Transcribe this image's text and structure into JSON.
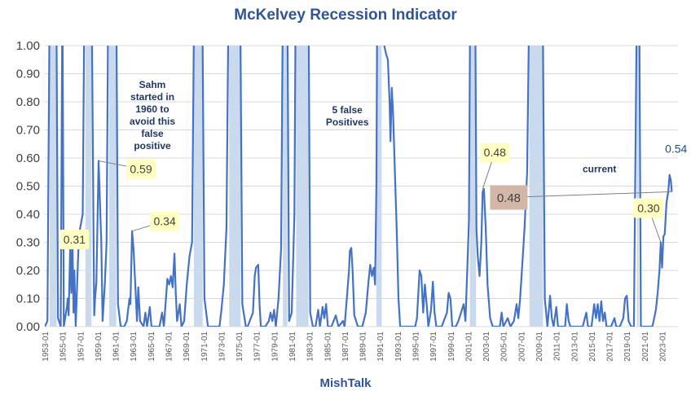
{
  "chart_data": {
    "type": "line",
    "title": "McKelvey Recession Indicator",
    "xlabel": "MishTalk",
    "ylabel": "",
    "ylim": [
      0,
      1
    ],
    "xlim": [
      1953.0,
      2024.8
    ],
    "grid": true,
    "legend": "none",
    "y_ticks": [
      "0.00",
      "0.10",
      "0.20",
      "0.30",
      "0.40",
      "0.50",
      "0.60",
      "0.70",
      "0.80",
      "0.90",
      "1.00"
    ],
    "x_ticks": [
      "1953-01",
      "1955-01",
      "1957-01",
      "1959-01",
      "1961-01",
      "1963-01",
      "1965-01",
      "1967-01",
      "1969-01",
      "1971-01",
      "1973-01",
      "1975-01",
      "1977-01",
      "1979-01",
      "1981-01",
      "1983-01",
      "1985-01",
      "1987-01",
      "1989-01",
      "1991-01",
      "1993-01",
      "1995-01",
      "1997-01",
      "1999-01",
      "2001-01",
      "2003-01",
      "2005-01",
      "2007-01",
      "2009-01",
      "2011-01",
      "2013-01",
      "2015-01",
      "2017-01",
      "2019-01",
      "2021-01",
      "2023-01"
    ],
    "recessions": [
      [
        1953.55,
        1954.35
      ],
      [
        1957.6,
        1958.3
      ],
      [
        1960.3,
        1961.1
      ],
      [
        1969.9,
        1970.9
      ],
      [
        1973.9,
        1975.2
      ],
      [
        1980.0,
        1980.5
      ],
      [
        1981.5,
        1982.9
      ],
      [
        1990.6,
        1991.2
      ],
      [
        2001.2,
        2001.9
      ],
      [
        2007.95,
        2009.5
      ],
      [
        2020.15,
        2020.35
      ]
    ],
    "series": [
      {
        "color": "#4472c4",
        "points": [
          [
            1953.0,
            0.0
          ],
          [
            1953.3,
            0.02
          ],
          [
            1953.55,
            1.2
          ],
          [
            1954.3,
            1.2
          ],
          [
            1954.5,
            0.03
          ],
          [
            1954.8,
            0.0
          ],
          [
            1955.0,
            1.2
          ],
          [
            1955.15,
            0.0
          ],
          [
            1955.5,
            0.07
          ],
          [
            1955.6,
            0.1
          ],
          [
            1955.7,
            0.04
          ],
          [
            1955.9,
            0.31
          ],
          [
            1956.0,
            0.12
          ],
          [
            1956.15,
            0.28
          ],
          [
            1956.25,
            0.05
          ],
          [
            1956.35,
            0.2
          ],
          [
            1956.5,
            0.0
          ],
          [
            1956.8,
            0.27
          ],
          [
            1957.0,
            0.35
          ],
          [
            1957.3,
            0.4
          ],
          [
            1957.5,
            1.2
          ],
          [
            1958.3,
            1.2
          ],
          [
            1958.6,
            0.04
          ],
          [
            1958.7,
            0.1
          ],
          [
            1958.85,
            0.16
          ],
          [
            1959.1,
            0.59
          ],
          [
            1959.4,
            0.3
          ],
          [
            1959.55,
            0.02
          ],
          [
            1959.8,
            0.15
          ],
          [
            1960.0,
            0.3
          ],
          [
            1960.2,
            1.2
          ],
          [
            1961.1,
            1.2
          ],
          [
            1961.3,
            0.08
          ],
          [
            1961.6,
            0.0
          ],
          [
            1962.0,
            0.0
          ],
          [
            1962.3,
            0.02
          ],
          [
            1962.6,
            0.1
          ],
          [
            1962.7,
            0.08
          ],
          [
            1962.9,
            0.34
          ],
          [
            1963.05,
            0.28
          ],
          [
            1963.3,
            0.12
          ],
          [
            1963.45,
            0.02
          ],
          [
            1963.6,
            0.14
          ],
          [
            1963.8,
            0.02
          ],
          [
            1964.2,
            0.0
          ],
          [
            1964.4,
            0.05
          ],
          [
            1964.6,
            0.0
          ],
          [
            1964.9,
            0.07
          ],
          [
            1965.1,
            0.0
          ],
          [
            1965.5,
            0.0
          ],
          [
            1966.0,
            0.0
          ],
          [
            1966.3,
            0.05
          ],
          [
            1966.5,
            0.0
          ],
          [
            1966.9,
            0.17
          ],
          [
            1967.1,
            0.15
          ],
          [
            1967.3,
            0.18
          ],
          [
            1967.5,
            0.14
          ],
          [
            1967.7,
            0.26
          ],
          [
            1967.85,
            0.12
          ],
          [
            1968.0,
            0.02
          ],
          [
            1968.3,
            0.08
          ],
          [
            1968.5,
            0.0
          ],
          [
            1968.8,
            0.02
          ],
          [
            1969.1,
            0.15
          ],
          [
            1969.4,
            0.25
          ],
          [
            1969.7,
            0.3
          ],
          [
            1969.95,
            1.2
          ],
          [
            1970.85,
            1.2
          ],
          [
            1971.1,
            0.1
          ],
          [
            1971.5,
            0.0
          ],
          [
            1972.0,
            0.0
          ],
          [
            1972.8,
            0.0
          ],
          [
            1973.0,
            0.05
          ],
          [
            1973.3,
            0.15
          ],
          [
            1973.6,
            0.35
          ],
          [
            1973.85,
            1.2
          ],
          [
            1975.15,
            1.2
          ],
          [
            1975.4,
            0.08
          ],
          [
            1975.8,
            0.0
          ],
          [
            1976.0,
            0.0
          ],
          [
            1976.6,
            0.05
          ],
          [
            1976.8,
            0.18
          ],
          [
            1976.95,
            0.21
          ],
          [
            1977.2,
            0.22
          ],
          [
            1977.35,
            0.08
          ],
          [
            1977.5,
            0.0
          ],
          [
            1978.0,
            0.0
          ],
          [
            1978.4,
            0.02
          ],
          [
            1978.6,
            0.05
          ],
          [
            1978.8,
            0.02
          ],
          [
            1979.0,
            0.06
          ],
          [
            1979.2,
            0.0
          ],
          [
            1979.5,
            0.1
          ],
          [
            1979.8,
            0.28
          ],
          [
            1980.0,
            1.2
          ],
          [
            1980.5,
            1.2
          ],
          [
            1980.7,
            0.02
          ],
          [
            1981.0,
            0.05
          ],
          [
            1981.3,
            0.4
          ],
          [
            1981.45,
            1.2
          ],
          [
            1982.9,
            1.2
          ],
          [
            1983.1,
            0.05
          ],
          [
            1983.4,
            0.0
          ],
          [
            1983.7,
            0.0
          ],
          [
            1984.0,
            0.06
          ],
          [
            1984.2,
            0.0
          ],
          [
            1984.5,
            0.07
          ],
          [
            1984.7,
            0.03
          ],
          [
            1984.9,
            0.08
          ],
          [
            1985.1,
            0.0
          ],
          [
            1985.5,
            0.0
          ],
          [
            1986.0,
            0.04
          ],
          [
            1986.3,
            0.0
          ],
          [
            1986.8,
            0.02
          ],
          [
            1987.0,
            0.0
          ],
          [
            1987.5,
            0.2
          ],
          [
            1987.6,
            0.27
          ],
          [
            1987.75,
            0.28
          ],
          [
            1987.9,
            0.2
          ],
          [
            1988.1,
            0.04
          ],
          [
            1988.5,
            0.0
          ],
          [
            1989.0,
            0.0
          ],
          [
            1989.4,
            0.05
          ],
          [
            1989.7,
            0.16
          ],
          [
            1989.9,
            0.22
          ],
          [
            1990.1,
            0.18
          ],
          [
            1990.3,
            0.21
          ],
          [
            1990.45,
            0.15
          ],
          [
            1990.6,
            0.5
          ],
          [
            1990.7,
            1.2
          ],
          [
            1991.3,
            1.2
          ],
          [
            1991.5,
            1.0
          ],
          [
            1991.7,
            0.97
          ],
          [
            1991.9,
            0.95
          ],
          [
            1992.1,
            0.8
          ],
          [
            1992.2,
            0.66
          ],
          [
            1992.35,
            0.85
          ],
          [
            1992.5,
            0.75
          ],
          [
            1992.7,
            0.55
          ],
          [
            1992.9,
            0.35
          ],
          [
            1993.1,
            0.1
          ],
          [
            1993.3,
            0.0
          ],
          [
            1993.6,
            0.0
          ],
          [
            1994.0,
            0.0
          ],
          [
            1995.0,
            0.0
          ],
          [
            1995.2,
            0.03
          ],
          [
            1995.5,
            0.2
          ],
          [
            1995.7,
            0.18
          ],
          [
            1995.9,
            0.05
          ],
          [
            1996.1,
            0.15
          ],
          [
            1996.3,
            0.08
          ],
          [
            1996.5,
            0.0
          ],
          [
            1996.8,
            0.06
          ],
          [
            1997.0,
            0.16
          ],
          [
            1997.2,
            0.05
          ],
          [
            1997.4,
            0.0
          ],
          [
            1998.0,
            0.0
          ],
          [
            1998.6,
            0.05
          ],
          [
            1998.8,
            0.12
          ],
          [
            1999.0,
            0.1
          ],
          [
            1999.2,
            0.0
          ],
          [
            1999.6,
            0.0
          ],
          [
            1999.9,
            0.02
          ],
          [
            2000.2,
            0.05
          ],
          [
            2000.5,
            0.08
          ],
          [
            2000.7,
            0.02
          ],
          [
            2000.9,
            0.2
          ],
          [
            2001.1,
            0.38
          ],
          [
            2001.25,
            1.2
          ],
          [
            2001.8,
            1.2
          ],
          [
            2001.95,
            0.35
          ],
          [
            2002.1,
            0.25
          ],
          [
            2002.3,
            0.18
          ],
          [
            2002.5,
            0.3
          ],
          [
            2002.65,
            0.48
          ],
          [
            2002.8,
            0.49
          ],
          [
            2003.0,
            0.35
          ],
          [
            2003.2,
            0.15
          ],
          [
            2003.5,
            0.03
          ],
          [
            2003.8,
            0.0
          ],
          [
            2004.2,
            0.0
          ],
          [
            2004.6,
            0.0
          ],
          [
            2004.8,
            0.05
          ],
          [
            2005.0,
            0.0
          ],
          [
            2005.5,
            0.03
          ],
          [
            2005.8,
            0.0
          ],
          [
            2006.2,
            0.02
          ],
          [
            2006.5,
            0.08
          ],
          [
            2006.7,
            0.03
          ],
          [
            2006.9,
            0.1
          ],
          [
            2007.1,
            0.2
          ],
          [
            2007.4,
            0.35
          ],
          [
            2007.7,
            0.55
          ],
          [
            2007.95,
            1.2
          ],
          [
            2009.45,
            1.2
          ],
          [
            2009.7,
            0.1
          ],
          [
            2010.0,
            0.0
          ],
          [
            2010.3,
            0.11
          ],
          [
            2010.5,
            0.03
          ],
          [
            2010.7,
            0.0
          ],
          [
            2011.0,
            0.07
          ],
          [
            2011.2,
            0.0
          ],
          [
            2012.0,
            0.0
          ],
          [
            2012.2,
            0.08
          ],
          [
            2012.4,
            0.02
          ],
          [
            2012.6,
            0.0
          ],
          [
            2013.0,
            0.0
          ],
          [
            2014.0,
            0.0
          ],
          [
            2014.4,
            0.05
          ],
          [
            2014.6,
            0.0
          ],
          [
            2015.0,
            0.0
          ],
          [
            2015.3,
            0.08
          ],
          [
            2015.5,
            0.03
          ],
          [
            2015.7,
            0.08
          ],
          [
            2015.9,
            0.02
          ],
          [
            2016.1,
            0.09
          ],
          [
            2016.3,
            0.02
          ],
          [
            2016.5,
            0.05
          ],
          [
            2016.7,
            0.0
          ],
          [
            2017.2,
            0.0
          ],
          [
            2017.6,
            0.03
          ],
          [
            2017.8,
            0.0
          ],
          [
            2018.2,
            0.0
          ],
          [
            2018.6,
            0.03
          ],
          [
            2018.8,
            0.1
          ],
          [
            2019.0,
            0.11
          ],
          [
            2019.2,
            0.02
          ],
          [
            2019.5,
            0.0
          ],
          [
            2019.8,
            0.0
          ],
          [
            2020.15,
            1.2
          ],
          [
            2020.4,
            1.2
          ],
          [
            2020.6,
            0.0
          ],
          [
            2021.0,
            0.0
          ],
          [
            2021.5,
            0.0
          ],
          [
            2021.9,
            0.0
          ],
          [
            2022.1,
            0.03
          ],
          [
            2022.3,
            0.06
          ],
          [
            2022.5,
            0.12
          ],
          [
            2022.7,
            0.2
          ],
          [
            2022.85,
            0.3
          ],
          [
            2023.0,
            0.21
          ],
          [
            2023.15,
            0.32
          ],
          [
            2023.3,
            0.33
          ],
          [
            2023.5,
            0.44
          ],
          [
            2023.7,
            0.48
          ],
          [
            2023.85,
            0.54
          ],
          [
            2024.0,
            0.52
          ],
          [
            2024.1,
            0.48
          ]
        ]
      }
    ],
    "data_labels": [
      {
        "text": "0.31",
        "x": 1955.9,
        "y": 0.31,
        "style": "yellow",
        "dx": 5,
        "dy": 0
      },
      {
        "text": "0.59",
        "x": 1959.1,
        "y": 0.59,
        "style": "yellow",
        "dx": 52,
        "dy": 10,
        "line": true
      },
      {
        "text": "0.34",
        "x": 1962.9,
        "y": 0.34,
        "style": "yellow",
        "dx": 40,
        "dy": -12,
        "line": true
      },
      {
        "text": "0.48",
        "x": 2002.65,
        "y": 0.49,
        "style": "yellow",
        "dx": 15,
        "dy": -45,
        "line": true
      },
      {
        "text": "0.48",
        "x": 2024.1,
        "y": 0.48,
        "style": "brown",
        "dx": -200,
        "dy": 7,
        "line": true
      },
      {
        "text": "0.30",
        "x": 2022.85,
        "y": 0.3,
        "style": "yellow",
        "dx": -15,
        "dy": -42,
        "line": true
      },
      {
        "text": "0.54",
        "x": 2023.85,
        "y": 0.54,
        "style": "plain",
        "dx": 8,
        "dy": -32
      }
    ],
    "annotations": [
      {
        "lines": [
          "Sahm",
          "started in",
          "1960 to",
          "avoid this",
          "false",
          "positive"
        ],
        "x": 1965.2,
        "y": 0.85
      },
      {
        "lines": [
          "5 false",
          "Positives"
        ],
        "x": 1987.3,
        "y": 0.76
      },
      {
        "lines": [
          "current"
        ],
        "x": 2015.9,
        "y": 0.55
      }
    ]
  }
}
